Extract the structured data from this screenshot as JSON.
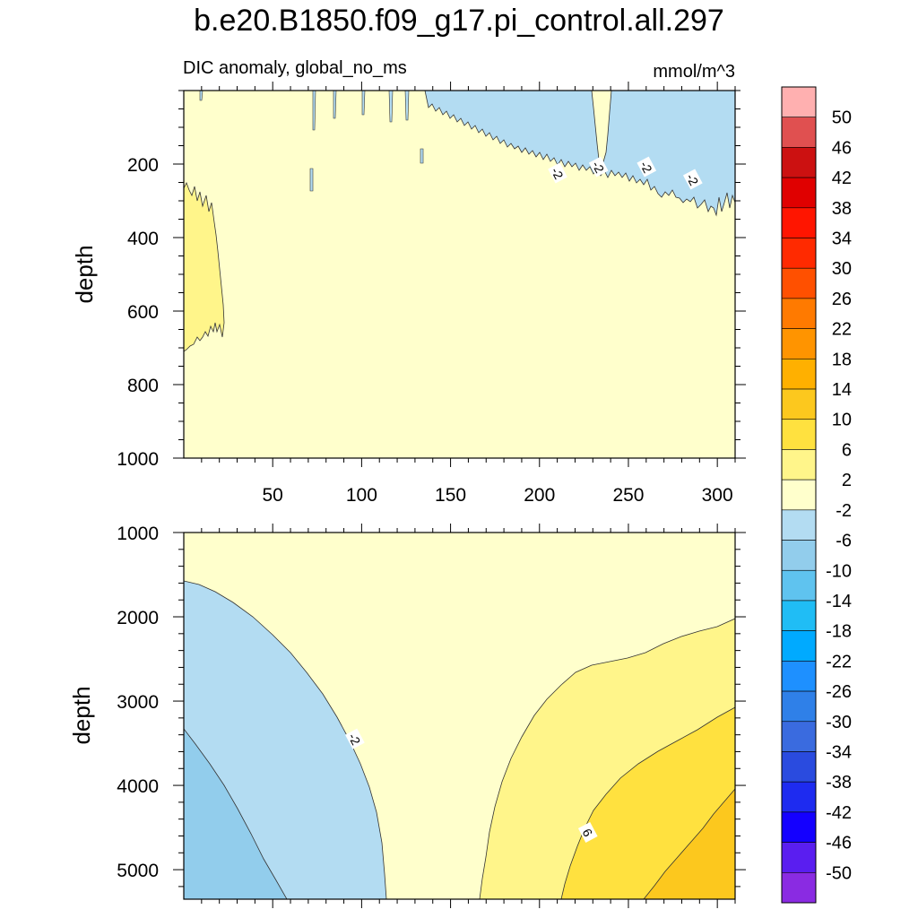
{
  "title": "b.e20.B1850.f09_g17.pi_control.all.297",
  "subtitle_left": "DIC anomaly, global_no_ms",
  "subtitle_right": "mmol/m^3",
  "colors": {
    "c_le_m50": "#8a2be2",
    "c_m50_m46": "#5a1ef0",
    "c_m46_m42": "#1400ff",
    "c_m42_m38": "#1e2bf0",
    "c_m38_m34": "#2a4bdf",
    "c_m34_m30": "#3a6bdf",
    "c_m30_m26": "#2f80e8",
    "c_m26_m22": "#1e90ff",
    "c_m22_m18": "#00aaff",
    "c_m18_m14": "#20bdf5",
    "c_m14_m10": "#5fc3ef",
    "c_m10_m6": "#92cdec",
    "c_m6_m2": "#b3dcf2",
    "c_m2_2": "#ffffcc",
    "c_2_6": "#fff58a",
    "c_6_10": "#ffe13f",
    "c_10_14": "#fcc81e",
    "c_14_18": "#ffb000",
    "c_18_22": "#ff9400",
    "c_22_26": "#ff7a00",
    "c_26_30": "#ff5000",
    "c_30_34": "#ff2a00",
    "c_34_38": "#ff1500",
    "c_38_42": "#e00000",
    "c_42_46": "#cc1111",
    "c_46_50": "#e05050",
    "c_gt_50": "#ffb0b0"
  },
  "chart_data": [
    {
      "type": "contour",
      "panel": "upper",
      "xlabel": "",
      "ylabel": "depth",
      "xlim": [
        0,
        310
      ],
      "ylim": [
        1000,
        0
      ],
      "x_ticks": [
        50,
        100,
        150,
        200,
        250,
        300
      ],
      "y_ticks": [
        200,
        400,
        600,
        800,
        1000
      ],
      "contour_labels": [
        {
          "text": "-2",
          "x": 210,
          "y": 225
        },
        {
          "text": "-2",
          "x": 233,
          "y": 208
        },
        {
          "text": "-2",
          "x": 260,
          "y": 208
        },
        {
          "text": "-2",
          "x": 286,
          "y": 242
        }
      ]
    },
    {
      "type": "contour",
      "panel": "lower",
      "xlabel": "",
      "ylabel": "depth",
      "xlim": [
        0,
        310
      ],
      "ylim": [
        5350,
        1000
      ],
      "x_ticks": [
        50,
        100,
        150,
        200,
        250,
        300
      ],
      "y_ticks": [
        1000,
        2000,
        3000,
        4000,
        5000
      ],
      "contour_labels": [
        {
          "text": "-2",
          "x": 96,
          "y": 3450
        },
        {
          "text": "6",
          "x": 227,
          "y": 4560
        }
      ]
    }
  ],
  "colorbar": {
    "labels": [
      "50",
      "46",
      "42",
      "38",
      "34",
      "30",
      "26",
      "22",
      "18",
      "14",
      "10",
      "6",
      "2",
      "-2",
      "-6",
      "-10",
      "-14",
      "-18",
      "-22",
      "-26",
      "-30",
      "-34",
      "-38",
      "-42",
      "-46",
      "-50"
    ],
    "colors": [
      "#ffb0b0",
      "#e05050",
      "#cc1111",
      "#e00000",
      "#ff1500",
      "#ff2a00",
      "#ff5000",
      "#ff7a00",
      "#ff9400",
      "#ffb000",
      "#fcc81e",
      "#ffe13f",
      "#fff58a",
      "#ffffcc",
      "#b3dcf2",
      "#92cdec",
      "#5fc3ef",
      "#20bdf5",
      "#00aaff",
      "#1e90ff",
      "#2f80e8",
      "#3a6bdf",
      "#2a4bdf",
      "#1e2bf0",
      "#1400ff",
      "#5a1ef0",
      "#8a2be2"
    ]
  }
}
